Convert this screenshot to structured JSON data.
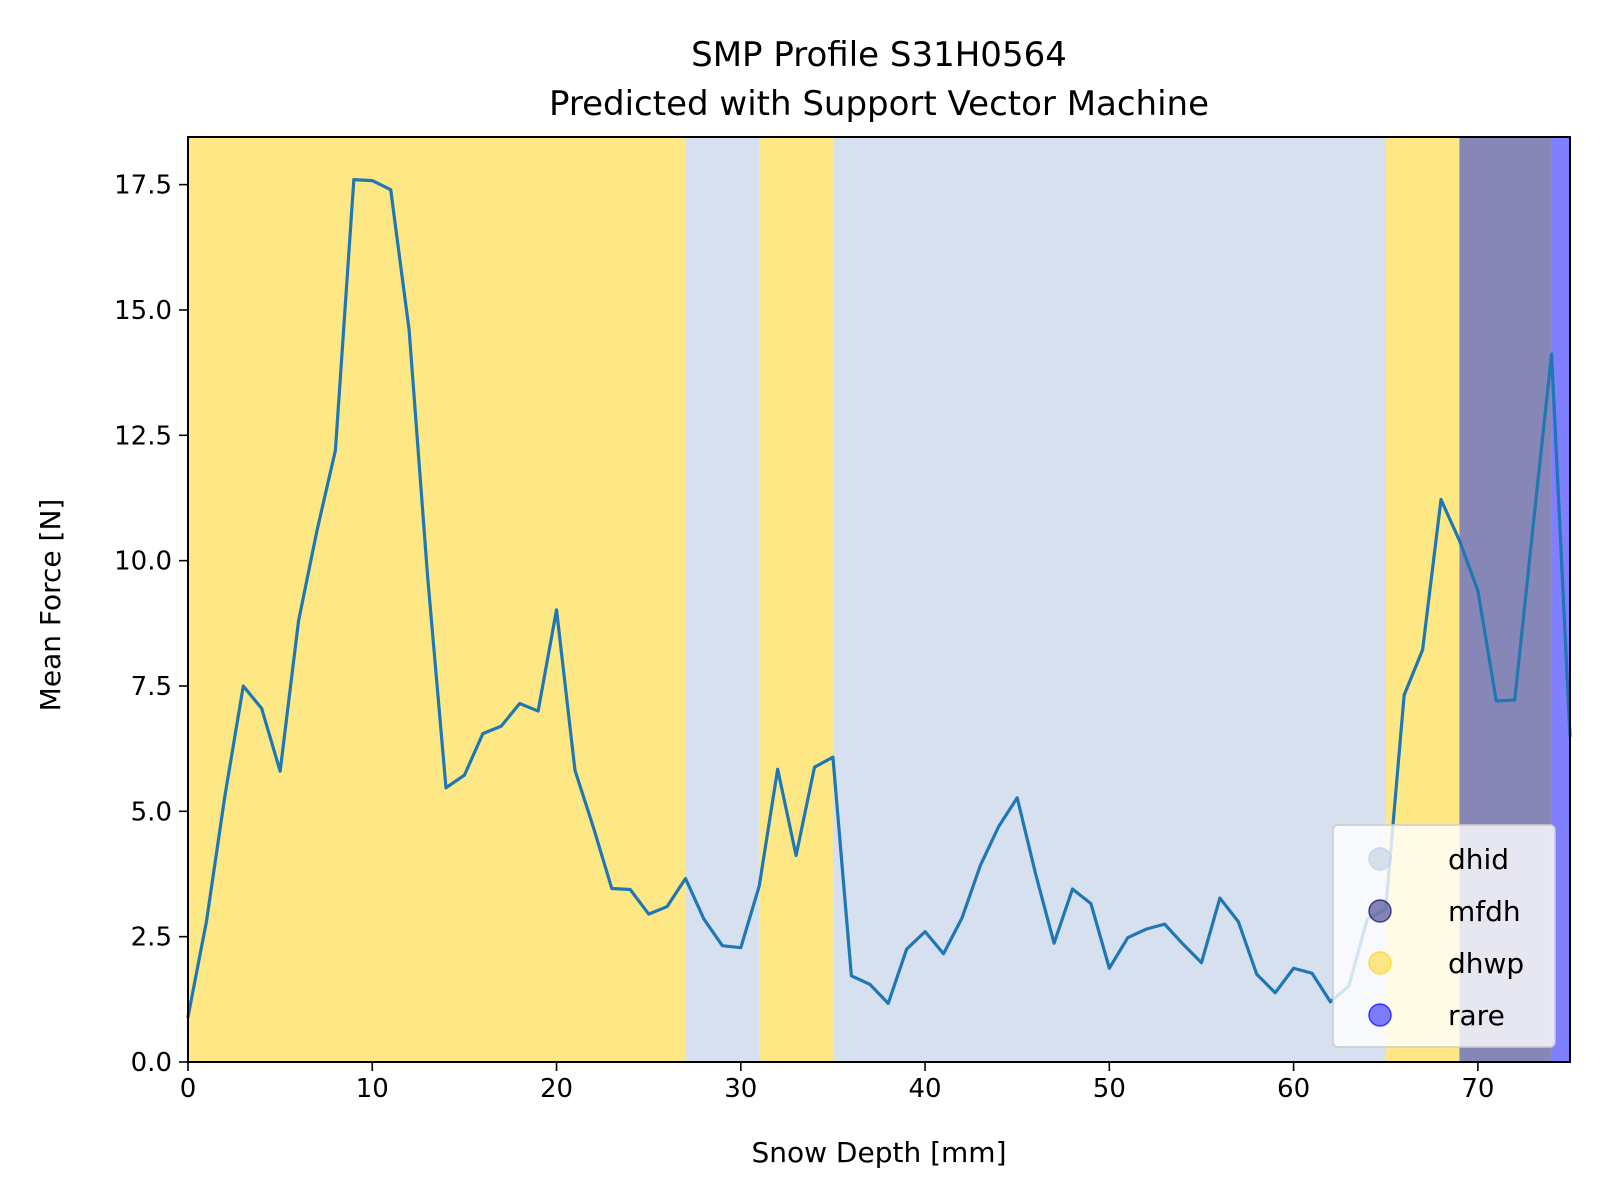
{
  "chart_data": {
    "type": "line",
    "title": "SMP Profile S31H0564",
    "subtitle": "Predicted with Support Vector Machine",
    "xlabel": "Snow Depth [mm]",
    "ylabel": "Mean Force [N]",
    "xlim": [
      0,
      75
    ],
    "ylim": [
      0,
      18.45
    ],
    "xticks": [
      0,
      10,
      20,
      30,
      40,
      50,
      60,
      70
    ],
    "yticks": [
      0.0,
      2.5,
      5.0,
      7.5,
      10.0,
      12.5,
      15.0,
      17.5
    ],
    "xtick_labels": [
      "0",
      "10",
      "20",
      "30",
      "40",
      "50",
      "60",
      "70"
    ],
    "ytick_labels": [
      "0.0",
      "2.5",
      "5.0",
      "7.5",
      "10.0",
      "12.5",
      "15.0",
      "17.5"
    ],
    "grid": false,
    "legend_position": "lower-right",
    "line_color": "#1f77b4",
    "classes": [
      {
        "name": "dhid",
        "color": "#c8d5e8",
        "alpha": 0.75
      },
      {
        "name": "mfdh",
        "color": "#000066",
        "alpha": 0.47
      },
      {
        "name": "dhwp",
        "color": "#fdd835",
        "alpha": 0.6
      },
      {
        "name": "rare",
        "color": "#0000ff",
        "alpha": 0.5
      }
    ],
    "regions": [
      {
        "class": "dhwp",
        "x_start": 0,
        "x_end": 27
      },
      {
        "class": "dhid",
        "x_start": 27,
        "x_end": 31
      },
      {
        "class": "dhwp",
        "x_start": 31,
        "x_end": 35
      },
      {
        "class": "dhid",
        "x_start": 35,
        "x_end": 65
      },
      {
        "class": "dhwp",
        "x_start": 65,
        "x_end": 69
      },
      {
        "class": "mfdh",
        "x_start": 69,
        "x_end": 74
      },
      {
        "class": "rare",
        "x_start": 74,
        "x_end": 75
      }
    ],
    "series": [
      {
        "x": [
          0,
          1,
          2,
          3,
          4,
          5,
          6,
          7,
          8,
          9,
          10,
          11,
          12,
          13,
          14,
          15,
          16,
          17,
          18,
          19,
          20,
          21,
          22,
          23,
          24,
          25,
          26,
          27,
          28,
          29,
          30,
          31,
          32,
          33,
          34,
          35,
          36,
          37,
          38,
          39,
          40,
          41,
          42,
          43,
          44,
          45,
          46,
          47,
          48,
          49,
          50,
          51,
          52,
          53,
          54,
          55,
          56,
          57,
          58,
          59,
          60,
          61,
          62,
          63,
          64,
          65,
          66,
          67,
          68,
          69,
          70,
          71,
          72,
          73,
          74,
          75
        ],
        "values": [
          0.9,
          2.8,
          5.3,
          7.5,
          7.05,
          5.8,
          8.8,
          10.6,
          12.2,
          17.6,
          17.58,
          17.4,
          14.6,
          9.7,
          5.47,
          5.72,
          6.55,
          6.7,
          7.15,
          7.0,
          9.02,
          5.82,
          4.68,
          3.46,
          3.44,
          2.95,
          3.1,
          3.66,
          2.85,
          2.32,
          2.28,
          3.51,
          5.84,
          4.12,
          5.88,
          6.08,
          1.72,
          1.55,
          1.17,
          2.25,
          2.6,
          2.16,
          2.87,
          3.92,
          4.7,
          5.27,
          3.75,
          2.37,
          3.45,
          3.16,
          1.87,
          2.48,
          2.65,
          2.75,
          2.35,
          1.98,
          3.27,
          2.8,
          1.75,
          1.38,
          1.87,
          1.77,
          1.2,
          1.52,
          2.85,
          3.05,
          7.32,
          8.22,
          11.22,
          10.4,
          9.4,
          7.2,
          7.22,
          10.7,
          14.12,
          6.5
        ]
      }
    ]
  }
}
